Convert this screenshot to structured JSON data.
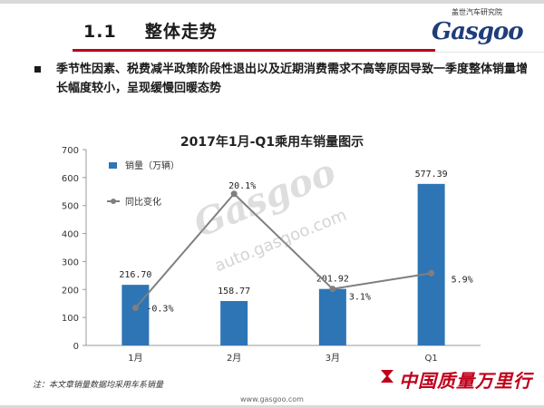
{
  "header": {
    "section_number": "1.1",
    "section_title": "整体走势",
    "logo_text": "Gasgoo",
    "logo_subtitle": "盖世汽车研究院"
  },
  "body": {
    "paragraph": "季节性因素、税费减半政策阶段性退出以及近期消费需求不高等原因导致一季度整体销量增长幅度较小，呈现缓慢回暖态势"
  },
  "watermark": {
    "brand": "Gasgoo",
    "brand_cn": "盖世汽车",
    "url": "auto.gasgoo.com"
  },
  "footer": {
    "note": "注：本文章销量数据均采用车系销量",
    "url": "www.gasgoo.com",
    "slogan": "中国质量万里行"
  },
  "colors": {
    "bar": "#2e75b6",
    "line": "#7f7f7f",
    "accent": "#c0001a"
  },
  "chart_data": {
    "type": "bar",
    "title": "2017年1月-Q1乘用车销量图示",
    "categories": [
      "1月",
      "2月",
      "3月",
      "Q1"
    ],
    "series": [
      {
        "name": "销量（万辆）",
        "type": "bar",
        "values": [
          216.7,
          158.77,
          201.92,
          577.39
        ],
        "labels": [
          "216.70",
          "158.77",
          "201.92",
          "577.39"
        ]
      },
      {
        "name": "同比变化",
        "type": "line",
        "values": [
          -0.3,
          20.1,
          3.1,
          5.9
        ],
        "labels": [
          "-0.3%",
          "20.1%",
          "3.1%",
          "5.9%"
        ]
      }
    ],
    "ylim": [
      0,
      700
    ],
    "yticks": [
      0,
      100,
      200,
      300,
      400,
      500,
      600,
      700
    ],
    "xlabel": "",
    "ylabel": "",
    "grid": false,
    "legend_position": "top-left"
  }
}
